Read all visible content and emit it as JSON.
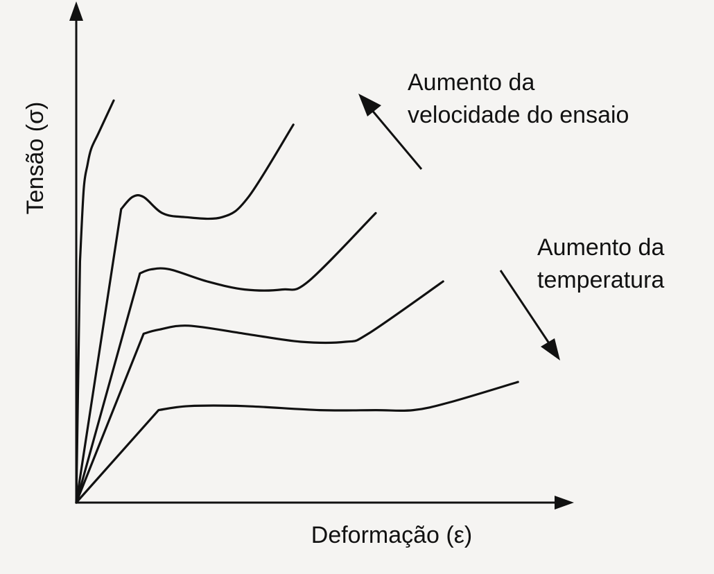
{
  "chart_data": {
    "type": "line",
    "title": "",
    "xlabel": "Deformação (ε)",
    "ylabel": "Tensão (σ)",
    "xticks": [],
    "yticks": [],
    "grid": false,
    "legend": "none",
    "series": [
      {
        "x": [
          0,
          1,
          2,
          3,
          4,
          6,
          10
        ],
        "y": [
          0,
          60,
          78,
          84,
          88,
          92,
          100
        ]
      },
      {
        "x": [
          0,
          12,
          15,
          18,
          23,
          29,
          39,
          46,
          58
        ],
        "y": [
          0,
          73,
          76,
          76,
          72,
          71,
          71,
          76,
          94
        ]
      },
      {
        "x": [
          0,
          17,
          20,
          25,
          35,
          45,
          55,
          62,
          80
        ],
        "y": [
          0,
          57,
          58,
          58,
          55,
          53,
          53,
          55,
          72
        ]
      },
      {
        "x": [
          0,
          18,
          22,
          30,
          45,
          60,
          72,
          78,
          98
        ],
        "y": [
          0,
          42,
          43,
          44,
          42,
          40,
          40,
          42,
          55
        ]
      },
      {
        "x": [
          0,
          22,
          30,
          45,
          65,
          80,
          90,
          100,
          118
        ],
        "y": [
          0,
          23,
          24,
          24,
          23,
          23,
          23,
          25,
          30
        ]
      }
    ],
    "annotations": [
      {
        "lines": [
          "Aumento da",
          "velocidade do ensaio"
        ],
        "arrow": "up-left"
      },
      {
        "lines": [
          "Aumento da",
          "temperatura"
        ],
        "arrow": "down-right"
      }
    ],
    "colors": {
      "ink": "#111111",
      "background": "#f5f4f2"
    }
  }
}
